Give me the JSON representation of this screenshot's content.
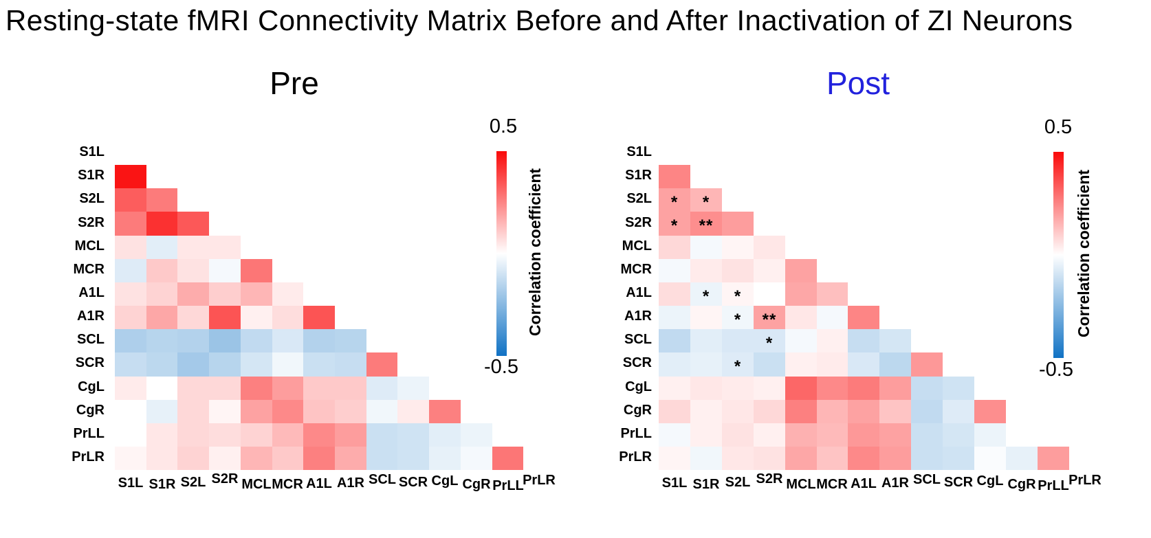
{
  "title": "Resting-state fMRI Connectivity Matrix Before and After Inactivation of ZI Neurons",
  "panels": [
    {
      "label": "Pre",
      "label_color": "#000000"
    },
    {
      "label": "Post",
      "label_color": "#2222dd"
    }
  ],
  "colorbar": {
    "top_label": "0.5",
    "bottom_label": "-0.5",
    "axis_label": "Correlation coefficient"
  },
  "colors": {
    "positive_max": "#fa0a0a",
    "zero": "#ffffff",
    "negative_max": "#1072c4",
    "text": "#000000"
  },
  "chart_data": {
    "type": "heatmap",
    "subtype": "lower-triangular correlation matrices, diagonal excluded",
    "value_range": [
      -0.5,
      0.5
    ],
    "regions": [
      "S1L",
      "S1R",
      "S2L",
      "S2R",
      "MCL",
      "MCR",
      "A1L",
      "A1R",
      "SCL",
      "SCR",
      "CgL",
      "CgR",
      "PrLL",
      "PrLR"
    ],
    "matrices": {
      "pre": {
        "title": "Pre",
        "rows": [
          [],
          [
            0.48
          ],
          [
            0.33,
            0.27
          ],
          [
            0.27,
            0.42,
            0.34
          ],
          [
            0.06,
            -0.06,
            0.05,
            0.05
          ],
          [
            -0.07,
            0.11,
            0.06,
            -0.02,
            0.28
          ],
          [
            0.06,
            0.09,
            0.17,
            0.1,
            0.15,
            0.04
          ],
          [
            0.09,
            0.18,
            0.08,
            0.35,
            0.03,
            0.07,
            0.35
          ],
          [
            -0.17,
            -0.15,
            -0.16,
            -0.21,
            -0.13,
            -0.08,
            -0.16,
            -0.15
          ],
          [
            -0.12,
            -0.14,
            -0.19,
            -0.15,
            -0.09,
            -0.03,
            -0.11,
            -0.12,
            0.27
          ],
          [
            0.04,
            0.0,
            0.08,
            0.08,
            0.26,
            0.2,
            0.11,
            0.11,
            -0.07,
            -0.04
          ],
          [
            0.0,
            -0.05,
            0.08,
            0.02,
            0.19,
            0.24,
            0.12,
            0.1,
            -0.03,
            0.04,
            0.26
          ],
          [
            0.0,
            0.05,
            0.08,
            0.07,
            0.09,
            0.14,
            0.24,
            0.2,
            -0.11,
            -0.1,
            -0.06,
            -0.04
          ],
          [
            0.02,
            0.05,
            0.09,
            0.03,
            0.15,
            0.11,
            0.26,
            0.17,
            -0.11,
            -0.1,
            -0.05,
            -0.02,
            0.28
          ]
        ],
        "significance": []
      },
      "post": {
        "title": "Post",
        "rows": [
          [],
          [
            0.25
          ],
          [
            0.19,
            0.15
          ],
          [
            0.19,
            0.23,
            0.2
          ],
          [
            0.08,
            -0.02,
            0.02,
            0.05
          ],
          [
            -0.02,
            0.04,
            0.06,
            0.03,
            0.19
          ],
          [
            0.07,
            -0.04,
            0.02,
            0.0,
            0.18,
            0.13
          ],
          [
            -0.04,
            0.02,
            -0.03,
            0.19,
            0.05,
            -0.02,
            0.25
          ],
          [
            -0.13,
            -0.06,
            -0.08,
            -0.08,
            -0.02,
            0.03,
            -0.12,
            -0.09
          ],
          [
            -0.06,
            -0.05,
            -0.07,
            -0.11,
            0.03,
            0.04,
            -0.08,
            -0.14,
            0.21
          ],
          [
            0.03,
            0.05,
            0.04,
            0.03,
            0.31,
            0.24,
            0.27,
            0.2,
            -0.12,
            -0.1
          ],
          [
            0.08,
            0.03,
            0.05,
            0.08,
            0.26,
            0.15,
            0.19,
            0.12,
            -0.13,
            -0.07,
            0.23
          ],
          [
            -0.02,
            0.03,
            0.06,
            0.03,
            0.16,
            0.14,
            0.21,
            0.19,
            -0.11,
            -0.09,
            -0.04,
            0.0
          ],
          [
            0.02,
            -0.03,
            0.05,
            0.06,
            0.18,
            0.12,
            0.24,
            0.2,
            -0.11,
            -0.1,
            -0.01,
            -0.05,
            0.2
          ]
        ],
        "significance": [
          {
            "row": 2,
            "col": 0,
            "mark": "*"
          },
          {
            "row": 2,
            "col": 1,
            "mark": "*"
          },
          {
            "row": 3,
            "col": 0,
            "mark": "*"
          },
          {
            "row": 3,
            "col": 1,
            "mark": "**"
          },
          {
            "row": 6,
            "col": 1,
            "mark": "*"
          },
          {
            "row": 6,
            "col": 2,
            "mark": "*"
          },
          {
            "row": 7,
            "col": 2,
            "mark": "*"
          },
          {
            "row": 7,
            "col": 3,
            "mark": "**"
          },
          {
            "row": 8,
            "col": 3,
            "mark": "*"
          },
          {
            "row": 9,
            "col": 2,
            "mark": "*"
          }
        ]
      }
    }
  }
}
